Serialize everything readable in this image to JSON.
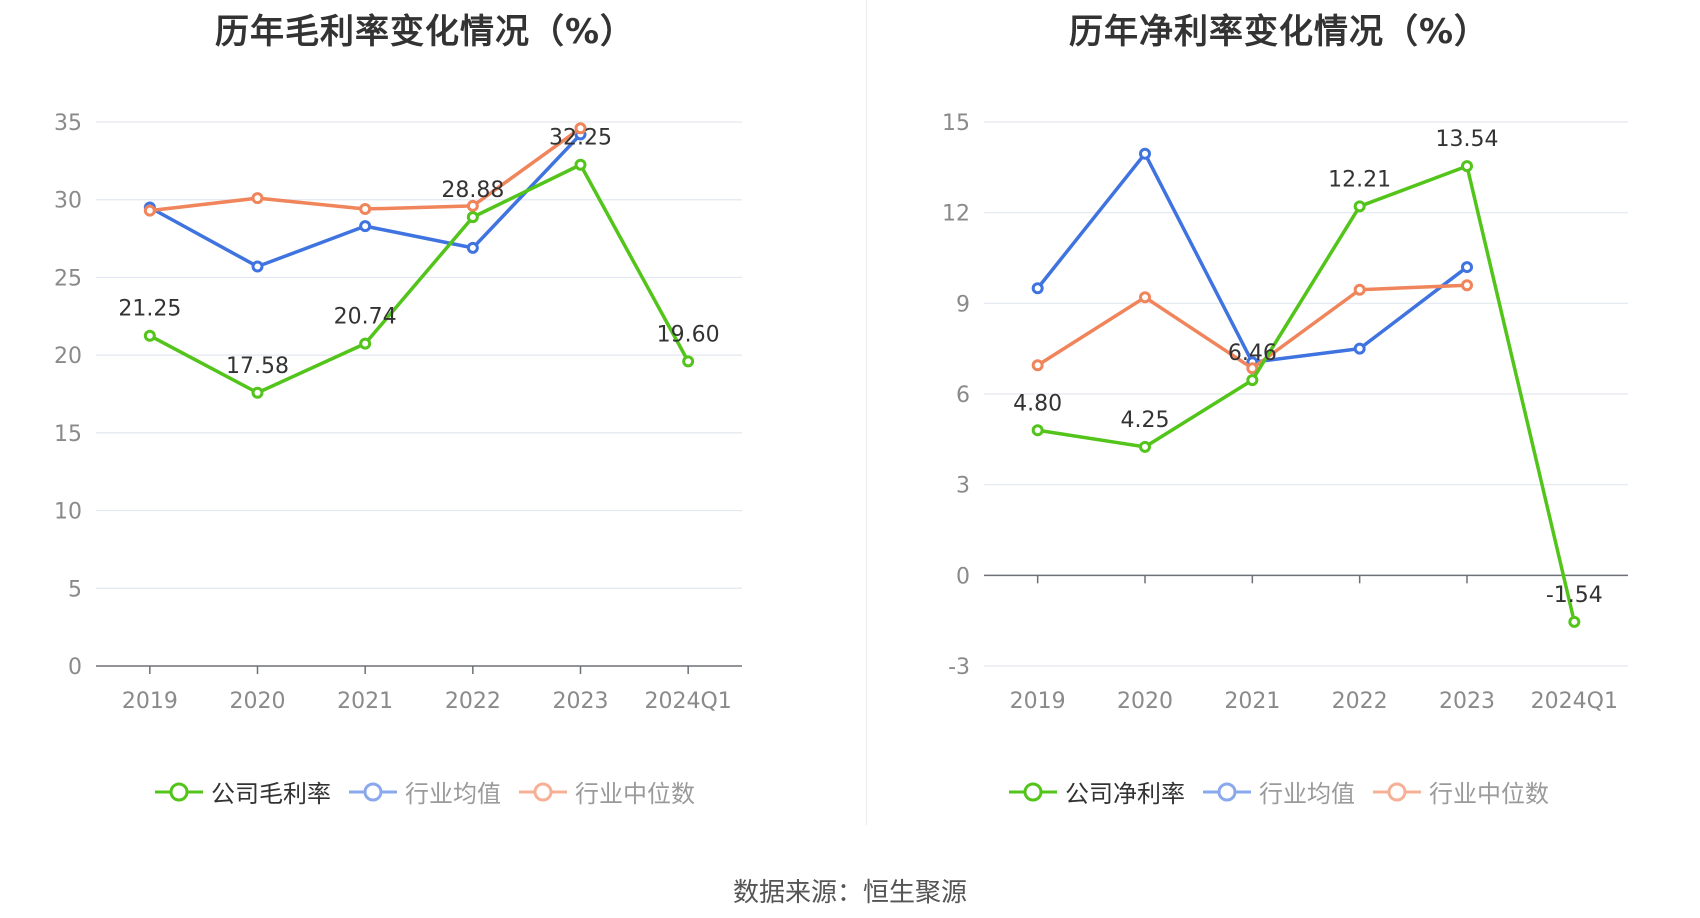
{
  "source": "数据来源：恒生聚源",
  "chart_data": [
    {
      "type": "line",
      "title": "历年毛利率变化情况（%）",
      "categories": [
        "2019",
        "2020",
        "2021",
        "2022",
        "2023",
        "2024Q1"
      ],
      "ylim": [
        0,
        35
      ],
      "yticks": [
        0,
        5,
        10,
        15,
        20,
        25,
        30,
        35
      ],
      "grid": true,
      "legend_position": "bottom",
      "series": [
        {
          "name": "公司毛利率",
          "color": "#52c41a",
          "values": [
            21.25,
            17.58,
            20.74,
            28.88,
            32.25,
            19.6
          ],
          "labels": [
            "21.25",
            "17.58",
            "20.74",
            "28.88",
            "32.25",
            "19.60"
          ]
        },
        {
          "name": "行业均值",
          "color": "#3f73e0",
          "values": [
            29.5,
            25.7,
            28.3,
            26.9,
            34.2,
            null
          ]
        },
        {
          "name": "行业中位数",
          "color": "#f0845a",
          "values": [
            29.3,
            30.1,
            29.4,
            29.6,
            34.6,
            null
          ]
        }
      ]
    },
    {
      "type": "line",
      "title": "历年净利率变化情况（%）",
      "categories": [
        "2019",
        "2020",
        "2021",
        "2022",
        "2023",
        "2024Q1"
      ],
      "ylim": [
        -3,
        15
      ],
      "yticks": [
        -3,
        0,
        3,
        6,
        9,
        12,
        15
      ],
      "grid": true,
      "legend_position": "bottom",
      "series": [
        {
          "name": "公司净利率",
          "color": "#52c41a",
          "values": [
            4.8,
            4.25,
            6.46,
            12.21,
            13.54,
            -1.54
          ],
          "labels": [
            "4.80",
            "4.25",
            "6.46",
            "12.21",
            "13.54",
            "-1.54"
          ]
        },
        {
          "name": "行业均值",
          "color": "#3f73e0",
          "values": [
            9.5,
            13.95,
            7.05,
            7.5,
            10.2,
            null
          ]
        },
        {
          "name": "行业中位数",
          "color": "#f0845a",
          "values": [
            6.95,
            9.2,
            6.85,
            9.45,
            9.6,
            null
          ]
        }
      ]
    }
  ]
}
